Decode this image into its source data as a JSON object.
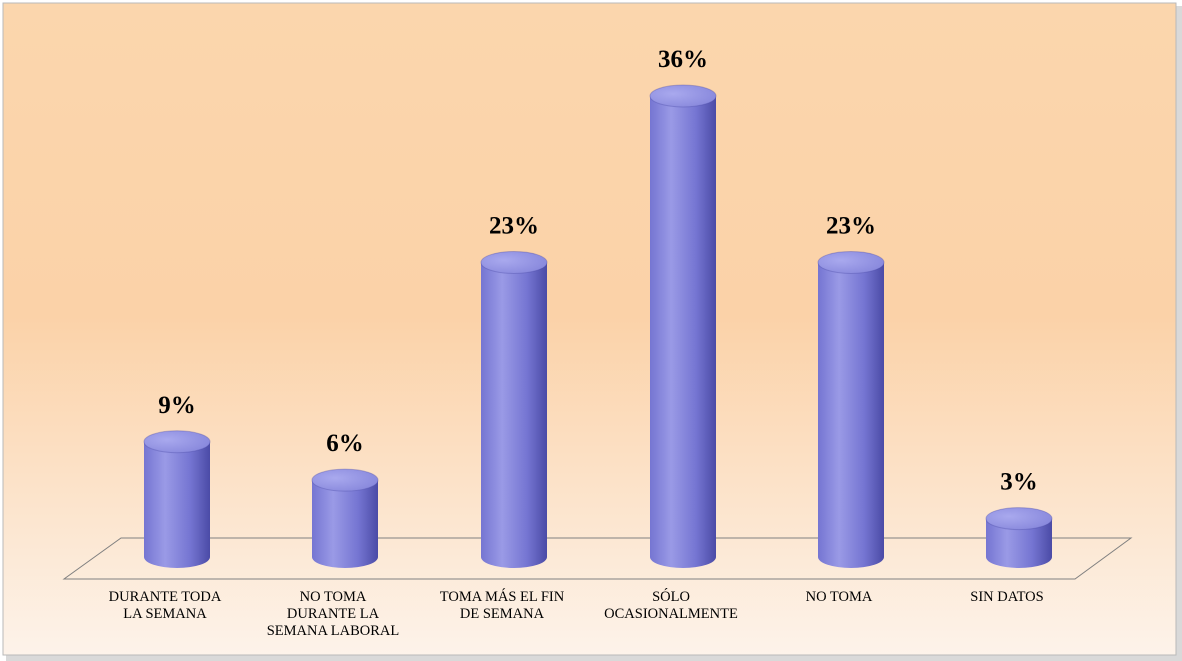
{
  "chart_data": {
    "type": "bar",
    "categories": [
      [
        "DURANTE TODA",
        "LA SEMANA"
      ],
      [
        "NO TOMA",
        "DURANTE LA",
        "SEMANA LABORAL"
      ],
      [
        "TOMA MÁS EL FIN",
        "DE SEMANA"
      ],
      [
        "SÓLO",
        "OCASIONALMENTE"
      ],
      [
        "NO TOMA"
      ],
      [
        "SIN DATOS"
      ]
    ],
    "values": [
      9,
      6,
      23,
      36,
      23,
      3
    ],
    "value_labels": [
      "9%",
      "6%",
      "23%",
      "36%",
      "23%",
      "3%"
    ],
    "unit": "%",
    "title": "",
    "xlabel": "",
    "ylabel": "",
    "ylim": [
      0,
      36
    ],
    "grid": false,
    "legend": "none",
    "colors": {
      "bar_light": "#9a9ae6",
      "bar_mid": "#7575d2",
      "bar_dark": "#4b4ba6",
      "bar_top": "#8888dc",
      "background_top": "#fbd6ad",
      "background_bottom": "#fdf3ea",
      "frame_border": "#b9b9b9"
    }
  }
}
